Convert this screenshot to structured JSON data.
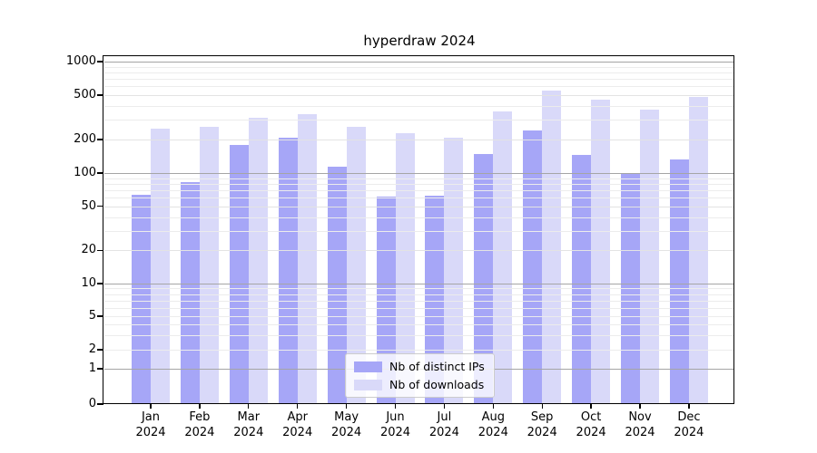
{
  "chart_data": {
    "type": "bar",
    "title": "hyperdraw 2024",
    "xlabel": "",
    "ylabel": "",
    "categories": [
      "Jan",
      "Feb",
      "Mar",
      "Apr",
      "May",
      "Jun",
      "Jul",
      "Aug",
      "Sep",
      "Oct",
      "Nov",
      "Dec"
    ],
    "year_label": "2024",
    "series": [
      {
        "name": "Nb of distinct IPs",
        "color": "#a6a6f7",
        "values": [
          63,
          83,
          178,
          209,
          113,
          61,
          62,
          148,
          242,
          145,
          100,
          132
        ]
      },
      {
        "name": "Nb of downloads",
        "color": "#d9d9f9",
        "values": [
          250,
          260,
          315,
          340,
          260,
          228,
          206,
          357,
          552,
          458,
          372,
          480
        ]
      }
    ],
    "yscale": "symlog",
    "ylim": [
      0,
      1000
    ],
    "y_ticks": [
      0,
      1,
      2,
      5,
      10,
      20,
      50,
      100,
      200,
      500,
      1000
    ],
    "y_tick_labels": [
      "0",
      "1",
      "2",
      "5",
      "10",
      "20",
      "50",
      "100",
      "200",
      "500",
      "1000"
    ],
    "grid": true,
    "legend_position": "lower center"
  }
}
